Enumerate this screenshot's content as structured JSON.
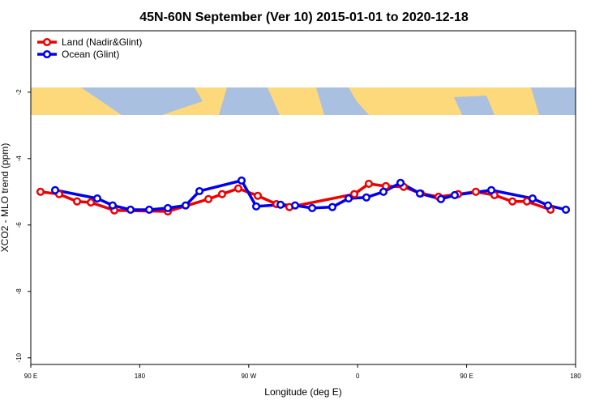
{
  "chart_data": {
    "type": "line",
    "title": "45N-60N September (Ver 10)   2015-01-01 to 2020-12-18",
    "x_label": "Longitude (deg E)",
    "y_label": "XCO2 - MLO trend (ppm)",
    "xlim": [
      90,
      540
    ],
    "ylim": [
      -10.2,
      -0.15
    ],
    "xticks": [
      {
        "value": 90,
        "label": "90 E"
      },
      180,
      {
        "value": 270,
        "label": "90 W"
      },
      {
        "value": 360,
        "label": "0"
      },
      {
        "value": 450,
        "label": "90 E"
      },
      180
    ],
    "yticks": [
      -2,
      -4,
      -6,
      -8,
      -10
    ],
    "legend": "top-left",
    "series": [
      {
        "name": "Land (Nadir&Glint)",
        "color": "#ee0000",
        "x": [
          98,
          113.4,
          128.2,
          139.6,
          159,
          203.2,
          236.7,
          248,
          261.4,
          277.5,
          292.9,
          303.6,
          357.2,
          369.2,
          383.3,
          398,
          412.1,
          426.8,
          442.9,
          457.6,
          473,
          487.8,
          499.8,
          519.3
        ],
        "values": [
          -5.0,
          -5.07,
          -5.29,
          -5.32,
          -5.56,
          -5.59,
          -5.22,
          -5.07,
          -4.9,
          -5.12,
          -5.37,
          -5.46,
          -5.07,
          -4.76,
          -4.83,
          -4.85,
          -5.05,
          -5.15,
          -5.07,
          -5.0,
          -5.1,
          -5.29,
          -5.29,
          -5.54
        ]
      },
      {
        "name": "Ocean (Glint)",
        "color": "#0000ee",
        "x": [
          110.1,
          144.9,
          157.6,
          172.4,
          187.8,
          203.2,
          217.9,
          229.3,
          264.1,
          276.2,
          296.3,
          308.3,
          322.4,
          339.1,
          352.5,
          367.2,
          381.3,
          395.4,
          411.4,
          428.8,
          440.2,
          470.4,
          504.5,
          517.2,
          532
        ],
        "values": [
          -4.95,
          -5.2,
          -5.41,
          -5.54,
          -5.54,
          -5.49,
          -5.41,
          -4.98,
          -4.66,
          -5.44,
          -5.39,
          -5.41,
          -5.49,
          -5.46,
          -5.2,
          -5.17,
          -5.0,
          -4.73,
          -5.05,
          -5.22,
          -5.1,
          -4.95,
          -5.2,
          -5.41,
          -5.54
        ]
      }
    ]
  }
}
